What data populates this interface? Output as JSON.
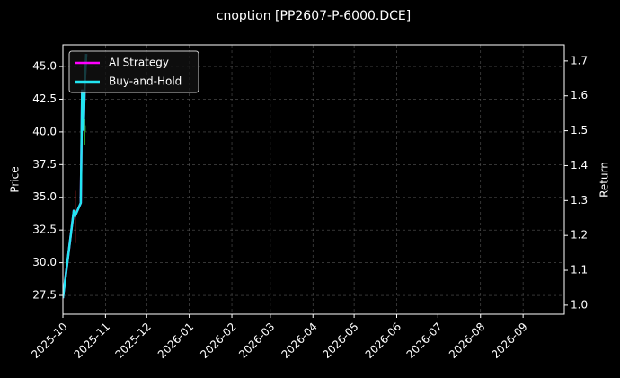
{
  "chart_data": {
    "type": "candlestick",
    "title": "cnoption [PP2607-P-6000.DCE]",
    "ylabel": "Price",
    "y2label": "Return",
    "xlim": [
      0,
      365
    ],
    "xticks": [
      {
        "value": 0,
        "label": "2025-10"
      },
      {
        "value": 31,
        "label": "2025-11"
      },
      {
        "value": 61,
        "label": "2025-12"
      },
      {
        "value": 92,
        "label": "2026-01"
      },
      {
        "value": 123,
        "label": "2026-02"
      },
      {
        "value": 151,
        "label": "2026-03"
      },
      {
        "value": 182,
        "label": "2026-04"
      },
      {
        "value": 212,
        "label": "2026-05"
      },
      {
        "value": 243,
        "label": "2026-06"
      },
      {
        "value": 273,
        "label": "2026-07"
      },
      {
        "value": 304,
        "label": "2026-08"
      },
      {
        "value": 335,
        "label": "2026-09"
      }
    ],
    "ylim": [
      26.06,
      46.65
    ],
    "yticks": [
      27.5,
      {
        "value": 30,
        "label": "30.0"
      },
      32.5,
      {
        "value": 35,
        "label": "35.0"
      },
      37.5,
      {
        "value": 40,
        "label": "40.0"
      },
      42.5,
      {
        "value": 45,
        "label": "45.0"
      }
    ],
    "y2lim": [
      0.974,
      1.746
    ],
    "y2ticks": [
      {
        "value": 1,
        "label": "1.0"
      },
      1.1,
      1.2,
      1.3,
      1.4,
      1.5,
      1.6,
      1.7
    ],
    "grid": true,
    "legend": "upper left",
    "candles": {
      "x": [
        9,
        16
      ],
      "open": [
        34,
        40
      ],
      "high": [
        35.5,
        41
      ],
      "low": [
        31.5,
        39
      ],
      "close": [
        33.5,
        40.5
      ],
      "up_color": "#2ca02c",
      "down_color": "#d62728"
    },
    "series": [
      {
        "name": "AI Strategy",
        "color": "#ff00ff",
        "axis": "y2",
        "x": [
          0,
          8,
          9,
          13,
          14,
          15,
          16,
          17
        ],
        "values": [
          1.02,
          1.273,
          1.257,
          1.293,
          1.618,
          1.5,
          1.643,
          1.72
        ]
      },
      {
        "name": "Buy-and-Hold",
        "color": "#22e5f2",
        "axis": "y2",
        "x": [
          0,
          8,
          9,
          13,
          14,
          15,
          16,
          17
        ],
        "values": [
          1.02,
          1.273,
          1.257,
          1.293,
          1.618,
          1.5,
          1.643,
          1.72
        ]
      }
    ]
  }
}
